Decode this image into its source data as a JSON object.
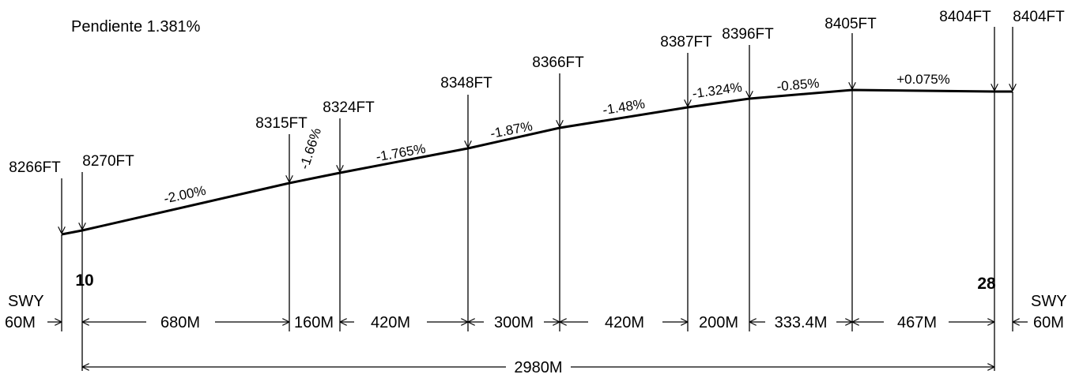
{
  "title": "Pendiente 1.381%",
  "runway": {
    "thr_left": "10",
    "thr_right": "28"
  },
  "swy": {
    "left_label": "SWY",
    "left_len": "60M",
    "right_label": "SWY",
    "right_len": "60M"
  },
  "total_length": "2980M",
  "colors": {
    "ink": "#000000",
    "background": "#ffffff"
  },
  "elevations": [
    "8266FT",
    "8270FT",
    "8315FT",
    "8324FT",
    "8348FT",
    "8366FT",
    "8387FT",
    "8396FT",
    "8405FT",
    "8404FT",
    "8404FT"
  ],
  "grades": [
    "-2.00%",
    "-1.66%",
    "-1.765%",
    "-1.87%",
    "-1.48%",
    "-1.324%",
    "-0.85%",
    "+0.075%"
  ],
  "segment_lengths": [
    "680M",
    "160M",
    "420M",
    "300M",
    "420M",
    "200M",
    "333.4M",
    "467M"
  ]
}
